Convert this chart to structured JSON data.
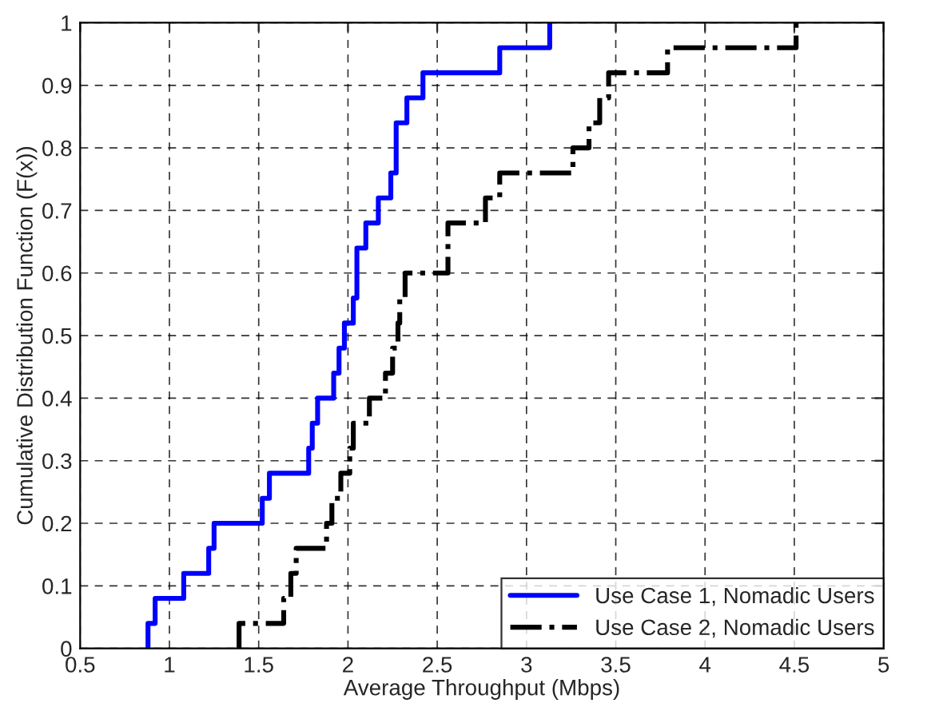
{
  "chart_data": {
    "type": "step",
    "xlabel": "Average Throughput (Mbps)",
    "ylabel": "Cumulative Distribution Function (F(x))",
    "xlim": [
      0.5,
      5
    ],
    "ylim": [
      0,
      1
    ],
    "xticks": [
      0.5,
      1,
      1.5,
      2,
      2.5,
      3,
      3.5,
      4,
      4.5,
      5
    ],
    "yticks": [
      0,
      0.1,
      0.2,
      0.3,
      0.4,
      0.5,
      0.6,
      0.7,
      0.8,
      0.9,
      1
    ],
    "grid": true,
    "legend": "bottom right",
    "series": [
      {
        "name": "Use Case 1, Nomadic Users",
        "color": "#0000ff",
        "line_style": "solid",
        "x": [
          0.88,
          0.88,
          0.92,
          1.08,
          1.22,
          1.25,
          1.52,
          1.56,
          1.78,
          1.8,
          1.83,
          1.92,
          1.95,
          1.98,
          2.03,
          2.05,
          2.1,
          2.17,
          2.24,
          2.27,
          2.33,
          2.42,
          2.85,
          3.13
        ],
        "values": [
          0,
          0.04,
          0.08,
          0.12,
          0.16,
          0.2,
          0.24,
          0.28,
          0.32,
          0.36,
          0.4,
          0.44,
          0.48,
          0.52,
          0.56,
          0.64,
          0.68,
          0.72,
          0.76,
          0.84,
          0.88,
          0.92,
          0.96,
          1
        ]
      },
      {
        "name": "Use Case 2, Nomadic Users",
        "color": "#000000",
        "line_style": "dashdot",
        "x": [
          1.39,
          1.39,
          1.64,
          1.68,
          1.71,
          1.88,
          1.91,
          1.96,
          2.01,
          2.03,
          2.12,
          2.21,
          2.25,
          2.28,
          2.29,
          2.32,
          2.56,
          2.77,
          2.85,
          3.26,
          3.35,
          3.41,
          3.46,
          3.79,
          4.51
        ],
        "values": [
          0,
          0.04,
          0.08,
          0.12,
          0.16,
          0.2,
          0.24,
          0.28,
          0.32,
          0.36,
          0.4,
          0.44,
          0.48,
          0.52,
          0.56,
          0.6,
          0.68,
          0.72,
          0.76,
          0.8,
          0.84,
          0.88,
          0.92,
          0.96,
          1
        ]
      }
    ]
  }
}
